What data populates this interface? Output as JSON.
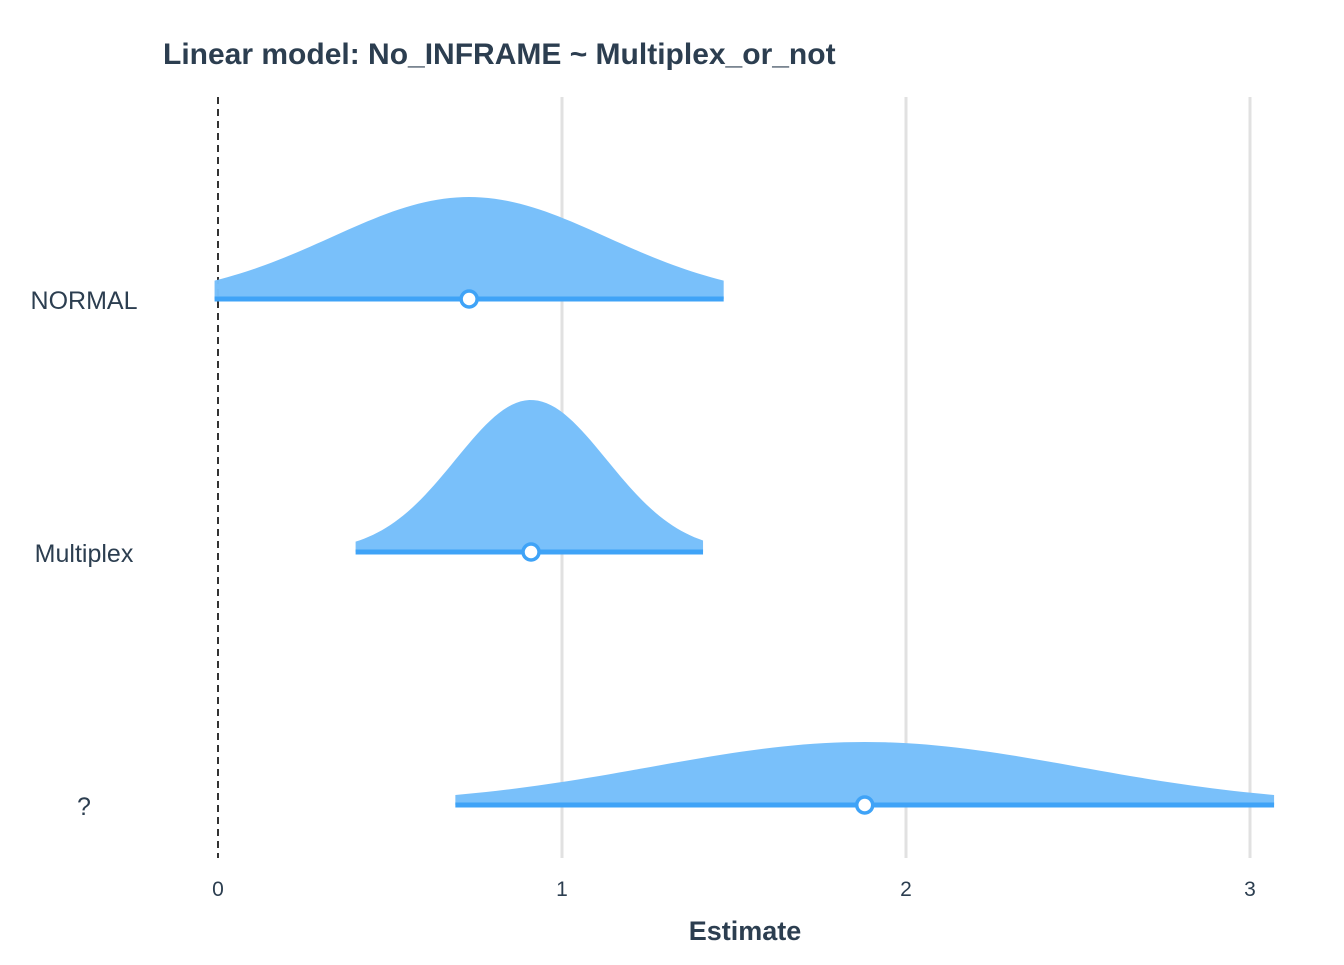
{
  "chart_data": {
    "type": "density-interval",
    "title": "Linear model: No_INFRAME ~ Multiplex_or_not",
    "xlabel": "Estimate",
    "ylabel": "",
    "xlim": [
      0,
      3.1
    ],
    "x_ticks": [
      0,
      1,
      2,
      3
    ],
    "reference_line": 0,
    "grid": "vertical major",
    "colors": {
      "fill": "#76bffa",
      "line": "#3fa3f7",
      "text": "#2c3e50",
      "grid": "#e1e1e1"
    },
    "rows": [
      {
        "label": "NORMAL",
        "estimate": 0.73,
        "ci_low": -0.01,
        "ci_high": 1.47,
        "sd": 0.4
      },
      {
        "label": "Multiplex",
        "estimate": 0.91,
        "ci_low": 0.4,
        "ci_high": 1.41,
        "sd": 0.22
      },
      {
        "label": "?",
        "estimate": 1.88,
        "ci_low": 0.69,
        "ci_high": 3.07,
        "sd": 0.62
      }
    ]
  }
}
